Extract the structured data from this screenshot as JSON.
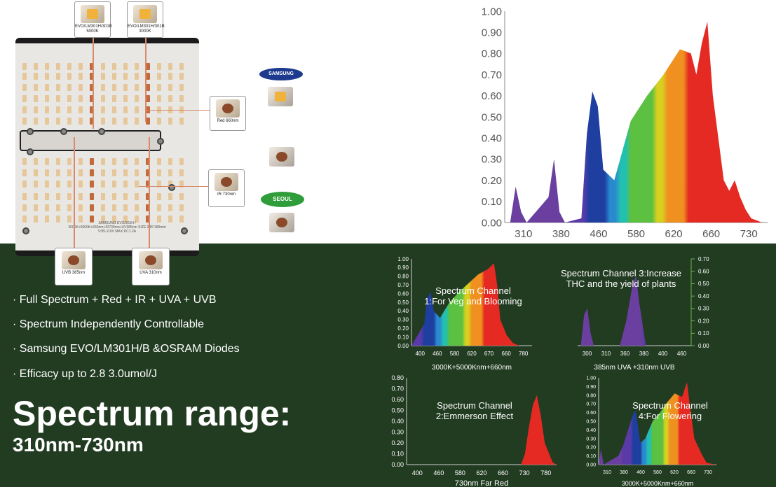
{
  "top": {
    "chip_labels": {
      "evo_5000k": "EVO/LM301H/301B\n5000K",
      "evo_3000k": "EVO/LM301H/301B\n3000K",
      "red": "Red 660nm",
      "ir": "IR 730nm",
      "uvb": "UVB 385nm",
      "uva": "UVA 310nm"
    },
    "board_text": "SAMSUNG EVO/301H / 3000K+5000K+660nm+IR730nm+UV385nm SIZE:285*180mm V:85-110V MAX:DC1.2A",
    "brand_samsung": "SAMSUNG",
    "brand_seoul": "SEOUL"
  },
  "bullets": [
    "· Full Spectrum + Red + IR + UVA + UVB",
    "· Spectrum Independently Controllable",
    "· Samsung EVO/LM301H/B &OSRAM Diodes",
    "· Efficacy up to 2.8 3.0umol/J"
  ],
  "headline": "Spectrum range:",
  "subheadline": "310nm-730nm",
  "colors": {
    "background_green": "#223c22",
    "uv_purple": "#6a3fa0",
    "blue": "#1e3fa0",
    "red": "#e42a23"
  },
  "chart_data": [
    {
      "type": "area",
      "x": [
        300,
        310,
        320,
        330,
        370,
        380,
        390,
        400,
        430,
        440,
        450,
        460,
        470,
        490,
        520,
        550,
        580,
        610,
        630,
        640,
        650,
        660,
        670,
        690,
        700,
        710,
        720,
        730,
        740,
        760
      ],
      "y": [
        0.0,
        0.17,
        0.05,
        0.0,
        0.12,
        0.3,
        0.05,
        0.0,
        0.02,
        0.42,
        0.62,
        0.55,
        0.25,
        0.2,
        0.48,
        0.6,
        0.7,
        0.82,
        0.8,
        0.7,
        0.85,
        0.95,
        0.6,
        0.2,
        0.15,
        0.2,
        0.12,
        0.06,
        0.02,
        0.0
      ],
      "xticks": [
        "310",
        "380",
        "460",
        "580",
        "620",
        "660",
        "730"
      ],
      "yticks": [
        "1.00",
        "0.90",
        "0.80",
        "0.70",
        "0.60",
        "0.50",
        "0.40",
        "0.30",
        "0.20",
        "0.10",
        "0.00"
      ],
      "ylim": [
        0,
        1.0
      ]
    },
    {
      "type": "area",
      "title": "Spectrum Channel\n1:For Veg and Blooming",
      "xlabel": "3000K+5000Knm+660nm",
      "x": [
        400,
        440,
        450,
        460,
        470,
        490,
        520,
        550,
        580,
        610,
        640,
        660,
        670,
        680,
        700,
        720,
        740,
        780
      ],
      "y": [
        0.0,
        0.25,
        0.55,
        0.62,
        0.4,
        0.32,
        0.5,
        0.62,
        0.72,
        0.82,
        0.88,
        0.95,
        0.7,
        0.3,
        0.12,
        0.03,
        0.0,
        0.0
      ],
      "xticks": [
        "400",
        "460",
        "580",
        "620",
        "670",
        "660",
        "780"
      ],
      "yticks": [
        "1.00",
        "0.90",
        "0.80",
        "0.70",
        "0.60",
        "0.50",
        "0.40",
        "0.30",
        "0.20",
        "0.10",
        "0.00"
      ],
      "ylim": [
        0,
        1.0
      ]
    },
    {
      "type": "area",
      "title": "Spectrum Channel 3:Increase\nTHC and the yield of plants",
      "xlabel": "385nm UVA +310nm UVB",
      "x": [
        300,
        305,
        310,
        315,
        320,
        360,
        370,
        380,
        385,
        390,
        400,
        460
      ],
      "y": [
        0.0,
        0.25,
        0.3,
        0.1,
        0.0,
        0.0,
        0.2,
        0.5,
        0.56,
        0.35,
        0.0,
        0.0
      ],
      "xticks": [
        "300",
        "310",
        "360",
        "380",
        "400",
        "460"
      ],
      "yticks": [
        "0.70",
        "0.60",
        "0.50",
        "0.40",
        "0.30",
        "0.20",
        "0.10",
        "0.00"
      ],
      "ylim": [
        0,
        0.7
      ]
    },
    {
      "type": "area",
      "title": "Spectrum Channel\n2:Emmerson Effect",
      "xlabel": "730nm Far Red",
      "x": [
        400,
        690,
        700,
        710,
        720,
        730,
        740,
        750,
        770,
        780
      ],
      "y": [
        0.0,
        0.0,
        0.1,
        0.35,
        0.55,
        0.64,
        0.45,
        0.2,
        0.02,
        0.0
      ],
      "xticks": [
        "400",
        "460",
        "580",
        "620",
        "660",
        "730",
        "780"
      ],
      "yticks": [
        "0.80",
        "0.70",
        "0.60",
        "0.50",
        "0.40",
        "0.30",
        "0.20",
        "0.10",
        "0.00"
      ],
      "ylim": [
        0,
        0.8
      ]
    },
    {
      "type": "area",
      "title": "Spectrum Channel\n4:For Flowering",
      "xlabel": "3000K+5000Knm+660nm",
      "x": [
        300,
        310,
        320,
        380,
        400,
        440,
        450,
        460,
        470,
        490,
        520,
        550,
        580,
        610,
        640,
        660,
        670,
        690,
        720,
        740,
        780
      ],
      "y": [
        0.0,
        0.18,
        0.0,
        0.1,
        0.22,
        0.58,
        0.62,
        0.45,
        0.25,
        0.3,
        0.5,
        0.6,
        0.72,
        0.82,
        0.78,
        0.95,
        0.72,
        0.3,
        0.12,
        0.02,
        0.0
      ],
      "xticks": [
        "310",
        "380",
        "460",
        "580",
        "620",
        "660",
        "730"
      ],
      "yticks": [
        "1.00",
        "0.90",
        "0.80",
        "0.70",
        "0.60",
        "0.50",
        "0.40",
        "0.30",
        "0.20",
        "0.10",
        "0.00"
      ],
      "ylim": [
        0,
        1.0
      ]
    }
  ]
}
